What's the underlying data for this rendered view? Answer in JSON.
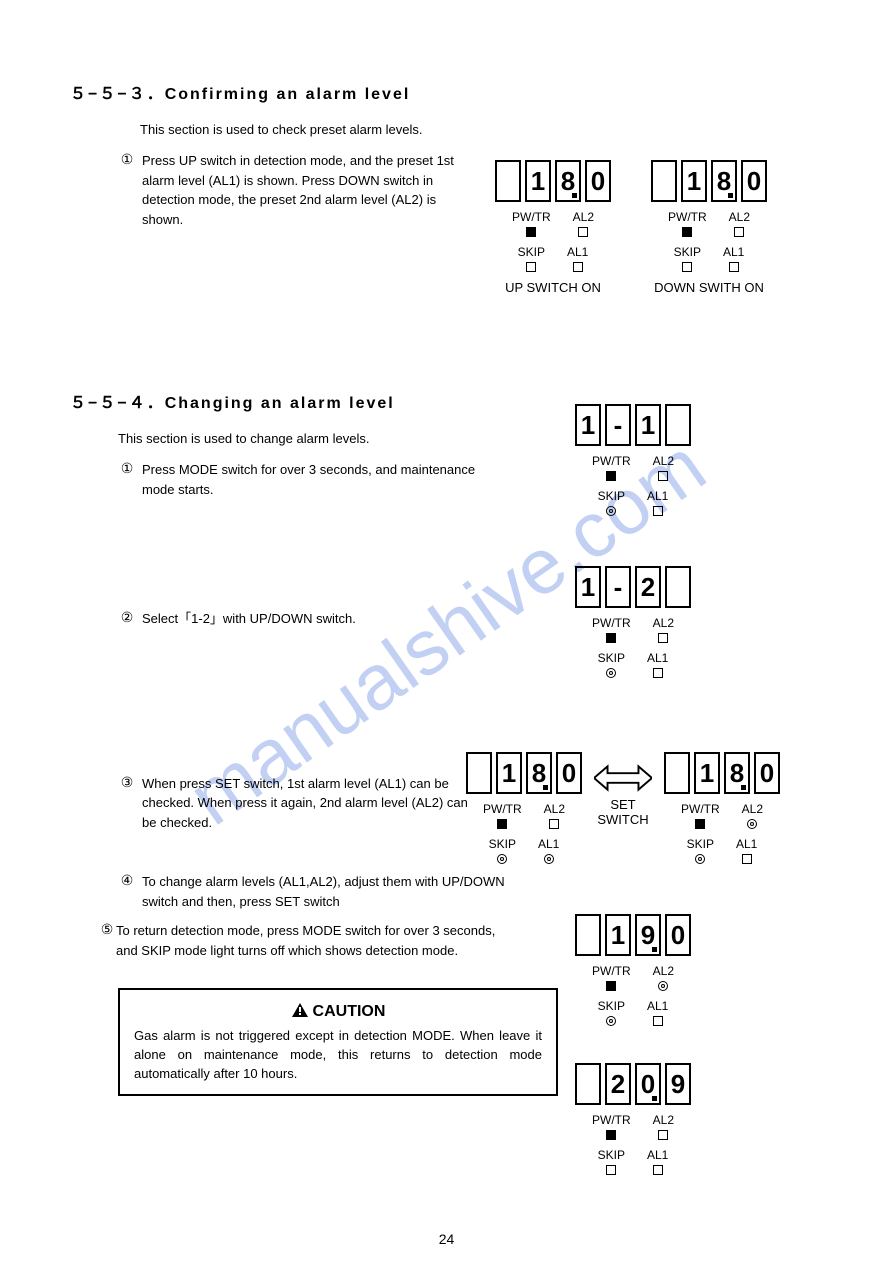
{
  "watermark": "manualshive.com",
  "pagenum": "24",
  "section553": {
    "heading": "５−５−３．Confirming an alarm level",
    "intro": "This section is used to check preset alarm levels.",
    "step1_num": "①",
    "step1_text": "Press UP switch in detection mode, and the preset 1st alarm level (AL1) is shown. Press DOWN switch in detection mode, the preset 2nd alarm level (AL2) is shown.",
    "disp1_caption": "UP SWITCH ON",
    "disp2_caption": "DOWN SWITH ON"
  },
  "section554": {
    "heading": "５−５−４．Changing an alarm level",
    "intro": "This section is used to change alarm levels.",
    "steps": {
      "s1_num": "①",
      "s1_text": "Press MODE switch for over 3 seconds, and maintenance mode starts.",
      "s2_num": "②",
      "s2_text": "Select「1-2」with UP/DOWN switch.",
      "s3_num": "③",
      "s3_text": "When press SET switch, 1st alarm level (AL1) can be checked. When press it again, 2nd alarm level (AL2) can be checked.",
      "s4_num": "④",
      "s4_text": "To change alarm levels (AL1,AL2), adjust them with UP/DOWN switch and then, press SET switch",
      "s5_num": "⑤",
      "s5_text": "To return detection mode, press MODE switch for over 3 seconds, and SKIP mode light turns off which shows detection mode."
    },
    "set_switch_label": "SET\nSWITCH"
  },
  "caution": {
    "title": "CAUTION",
    "body": "Gas alarm is not triggered except in detection MODE. When leave it alone on maintenance mode, this returns to detection mode automatically after 10 hours."
  },
  "led_labels": {
    "pwtr": "PW/TR",
    "al2": "AL2",
    "skip": "SKIP",
    "al1": "AL1"
  },
  "displays": {
    "d553a": {
      "digits": [
        "",
        "1",
        "8.",
        "0"
      ],
      "leds": {
        "pwtr": "filled",
        "al2": "empty",
        "skip": "empty",
        "al1": "empty"
      }
    },
    "d553b": {
      "digits": [
        "",
        "1",
        "8.",
        "0"
      ],
      "leds": {
        "pwtr": "filled",
        "al2": "empty",
        "skip": "empty",
        "al1": "empty"
      }
    },
    "d554_1": {
      "digits": [
        "1",
        "-",
        "1",
        ""
      ],
      "leds": {
        "pwtr": "filled",
        "al2": "empty",
        "skip": "target",
        "al1": "empty"
      }
    },
    "d554_2": {
      "digits": [
        "1",
        "-",
        "2",
        ""
      ],
      "leds": {
        "pwtr": "filled",
        "al2": "empty",
        "skip": "target",
        "al1": "empty"
      }
    },
    "d554_3a": {
      "digits": [
        "",
        "1",
        "8.",
        "0"
      ],
      "leds": {
        "pwtr": "filled",
        "al2": "empty",
        "skip": "target",
        "al1": "target"
      }
    },
    "d554_3b": {
      "digits": [
        "",
        "1",
        "8.",
        "0"
      ],
      "leds": {
        "pwtr": "filled",
        "al2": "target",
        "skip": "target",
        "al1": "empty"
      }
    },
    "d554_4": {
      "digits": [
        "",
        "1",
        "9.",
        "0"
      ],
      "leds": {
        "pwtr": "filled",
        "al2": "target",
        "skip": "target",
        "al1": "empty"
      }
    },
    "d554_5": {
      "digits": [
        "",
        "2",
        "0.",
        "9"
      ],
      "leds": {
        "pwtr": "filled",
        "al2": "empty",
        "skip": "empty",
        "al1": "empty"
      }
    }
  }
}
